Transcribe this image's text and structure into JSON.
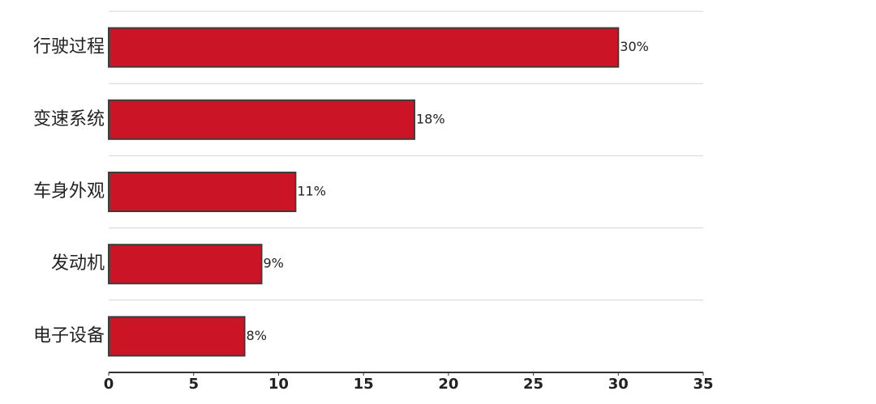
{
  "chart_data": {
    "type": "bar",
    "orientation": "horizontal",
    "categories": [
      "行驶过程",
      "变速系统",
      "车身外观",
      "发动机",
      "电子设备"
    ],
    "values": [
      30,
      18,
      11,
      9,
      8
    ],
    "value_labels": [
      "30%",
      "18%",
      "11%",
      "9%",
      "8%"
    ],
    "color": "#cb1425",
    "xlim": [
      0,
      35
    ],
    "xticks": [
      0,
      5,
      10,
      15,
      20,
      25,
      30,
      35
    ]
  }
}
